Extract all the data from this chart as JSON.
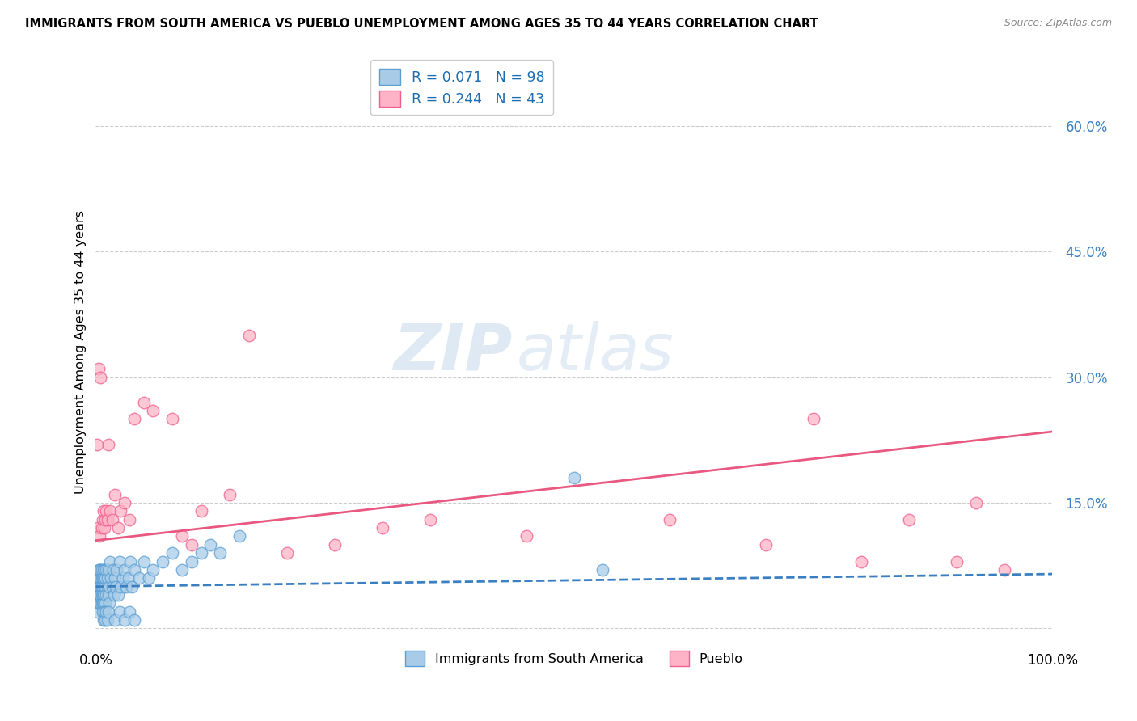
{
  "title": "IMMIGRANTS FROM SOUTH AMERICA VS PUEBLO UNEMPLOYMENT AMONG AGES 35 TO 44 YEARS CORRELATION CHART",
  "source": "Source: ZipAtlas.com",
  "ylabel": "Unemployment Among Ages 35 to 44 years",
  "yticks": [
    0.0,
    0.15,
    0.3,
    0.45,
    0.6
  ],
  "ytick_labels": [
    "",
    "15.0%",
    "30.0%",
    "45.0%",
    "60.0%"
  ],
  "xlim": [
    0.0,
    1.0
  ],
  "ylim": [
    -0.02,
    0.68
  ],
  "series1_name": "Immigrants from South America",
  "series1_R": 0.071,
  "series1_N": 98,
  "series1_color": "#a8cce8",
  "series1_edge": "#5b9fd4",
  "series2_name": "Pueblo",
  "series2_R": 0.244,
  "series2_N": 43,
  "series2_color": "#ffb3c6",
  "series2_edge": "#f06090",
  "trend1_color": "#3a7fc1",
  "trend2_color": "#e85880",
  "watermark_zip": "ZIP",
  "watermark_atlas": "atlas",
  "background_color": "#ffffff",
  "series1_x": [
    0.001,
    0.001,
    0.001,
    0.002,
    0.002,
    0.002,
    0.002,
    0.002,
    0.003,
    0.003,
    0.003,
    0.003,
    0.003,
    0.003,
    0.004,
    0.004,
    0.004,
    0.004,
    0.004,
    0.004,
    0.005,
    0.005,
    0.005,
    0.005,
    0.005,
    0.005,
    0.006,
    0.006,
    0.006,
    0.006,
    0.006,
    0.006,
    0.007,
    0.007,
    0.007,
    0.007,
    0.008,
    0.008,
    0.008,
    0.008,
    0.009,
    0.009,
    0.009,
    0.01,
    0.01,
    0.01,
    0.011,
    0.011,
    0.012,
    0.012,
    0.013,
    0.013,
    0.014,
    0.014,
    0.015,
    0.016,
    0.017,
    0.018,
    0.019,
    0.02,
    0.021,
    0.022,
    0.023,
    0.025,
    0.026,
    0.028,
    0.03,
    0.032,
    0.034,
    0.036,
    0.038,
    0.04,
    0.045,
    0.05,
    0.055,
    0.06,
    0.07,
    0.08,
    0.09,
    0.1,
    0.11,
    0.12,
    0.13,
    0.15,
    0.007,
    0.008,
    0.009,
    0.01,
    0.011,
    0.012,
    0.013,
    0.02,
    0.025,
    0.03,
    0.035,
    0.04,
    0.5,
    0.53
  ],
  "series1_y": [
    0.04,
    0.05,
    0.03,
    0.02,
    0.04,
    0.06,
    0.03,
    0.05,
    0.04,
    0.06,
    0.03,
    0.05,
    0.07,
    0.04,
    0.05,
    0.03,
    0.06,
    0.04,
    0.07,
    0.05,
    0.04,
    0.06,
    0.03,
    0.05,
    0.07,
    0.04,
    0.05,
    0.03,
    0.06,
    0.04,
    0.07,
    0.05,
    0.04,
    0.06,
    0.03,
    0.05,
    0.07,
    0.04,
    0.06,
    0.03,
    0.05,
    0.07,
    0.04,
    0.05,
    0.06,
    0.03,
    0.07,
    0.04,
    0.05,
    0.06,
    0.04,
    0.07,
    0.05,
    0.03,
    0.08,
    0.06,
    0.05,
    0.07,
    0.04,
    0.06,
    0.05,
    0.07,
    0.04,
    0.08,
    0.05,
    0.06,
    0.07,
    0.05,
    0.06,
    0.08,
    0.05,
    0.07,
    0.06,
    0.08,
    0.06,
    0.07,
    0.08,
    0.09,
    0.07,
    0.08,
    0.09,
    0.1,
    0.09,
    0.11,
    0.02,
    0.01,
    0.02,
    0.01,
    0.02,
    0.01,
    0.02,
    0.01,
    0.02,
    0.01,
    0.02,
    0.01,
    0.18,
    0.07
  ],
  "series2_x": [
    0.001,
    0.002,
    0.003,
    0.004,
    0.005,
    0.006,
    0.007,
    0.008,
    0.009,
    0.01,
    0.011,
    0.012,
    0.013,
    0.015,
    0.017,
    0.02,
    0.023,
    0.026,
    0.03,
    0.035,
    0.04,
    0.05,
    0.06,
    0.08,
    0.09,
    0.1,
    0.11,
    0.14,
    0.16,
    0.2,
    0.25,
    0.3,
    0.35,
    0.4,
    0.45,
    0.6,
    0.7,
    0.75,
    0.8,
    0.85,
    0.9,
    0.92,
    0.95
  ],
  "series2_y": [
    0.22,
    0.12,
    0.31,
    0.11,
    0.3,
    0.12,
    0.13,
    0.14,
    0.12,
    0.13,
    0.14,
    0.13,
    0.22,
    0.14,
    0.13,
    0.16,
    0.12,
    0.14,
    0.15,
    0.13,
    0.25,
    0.27,
    0.26,
    0.25,
    0.11,
    0.1,
    0.14,
    0.16,
    0.35,
    0.09,
    0.1,
    0.12,
    0.13,
    0.63,
    0.11,
    0.13,
    0.1,
    0.25,
    0.08,
    0.13,
    0.08,
    0.15,
    0.07
  ],
  "trend1_x": [
    0.0,
    1.0
  ],
  "trend1_y": [
    0.05,
    0.065
  ],
  "trend2_x": [
    0.0,
    1.0
  ],
  "trend2_y": [
    0.105,
    0.235
  ]
}
